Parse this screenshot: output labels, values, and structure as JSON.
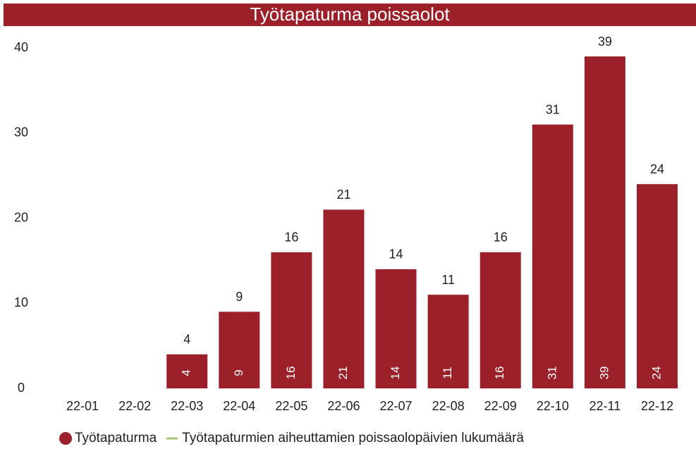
{
  "chart_data": {
    "type": "bar",
    "title": "Työtapaturma poissaolot",
    "categories": [
      "22-01",
      "22-02",
      "22-03",
      "22-04",
      "22-05",
      "22-06",
      "22-07",
      "22-08",
      "22-09",
      "22-10",
      "22-11",
      "22-12"
    ],
    "series": [
      {
        "name": "Työtapaturma",
        "color": "#9b2029",
        "type": "bar",
        "values": [
          null,
          null,
          4,
          9,
          16,
          21,
          14,
          11,
          16,
          31,
          39,
          24
        ]
      },
      {
        "name": "Työtapaturmien aiheuttamien poissaolopäivien lukumäärä",
        "color": "#a4c36f",
        "type": "line",
        "values": [
          null,
          null,
          null,
          null,
          null,
          null,
          null,
          null,
          null,
          null,
          null,
          null
        ]
      }
    ],
    "ylim": [
      0,
      40
    ],
    "yticks": [
      0,
      10,
      20,
      30,
      40
    ],
    "grid": false
  }
}
